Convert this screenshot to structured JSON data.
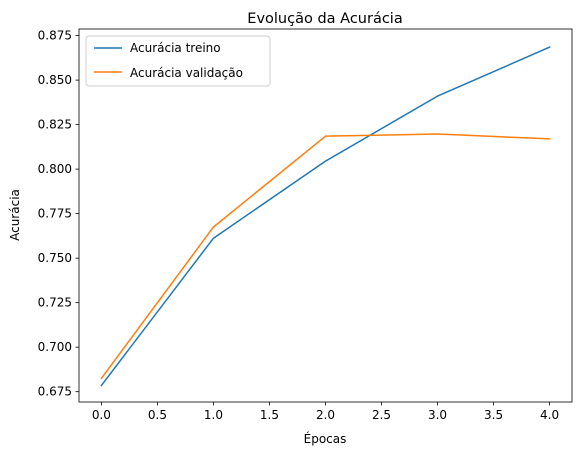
{
  "chart_data": {
    "type": "line",
    "title": "Evolução da Acurácia",
    "xlabel": "Épocas",
    "ylabel": "Acurácia",
    "x": [
      0,
      1,
      2,
      3,
      4
    ],
    "xlim": [
      -0.2,
      4.2
    ],
    "ylim": [
      0.6692,
      0.8787
    ],
    "xticks": [
      "0.0",
      "0.5",
      "1.0",
      "1.5",
      "2.0",
      "2.5",
      "3.0",
      "3.5",
      "4.0"
    ],
    "yticks": [
      "0.675",
      "0.700",
      "0.725",
      "0.750",
      "0.775",
      "0.800",
      "0.825",
      "0.850",
      "0.875"
    ],
    "grid": false,
    "legend_position": "upper-left",
    "series": [
      {
        "name": "Acurácia treino",
        "color": "#1f77b4",
        "values": [
          0.6785,
          0.7612,
          0.8045,
          0.841,
          0.8685
        ]
      },
      {
        "name": "Acurácia validação",
        "color": "#ff7f0e",
        "values": [
          0.6825,
          0.7675,
          0.8185,
          0.8197,
          0.817
        ]
      }
    ]
  }
}
